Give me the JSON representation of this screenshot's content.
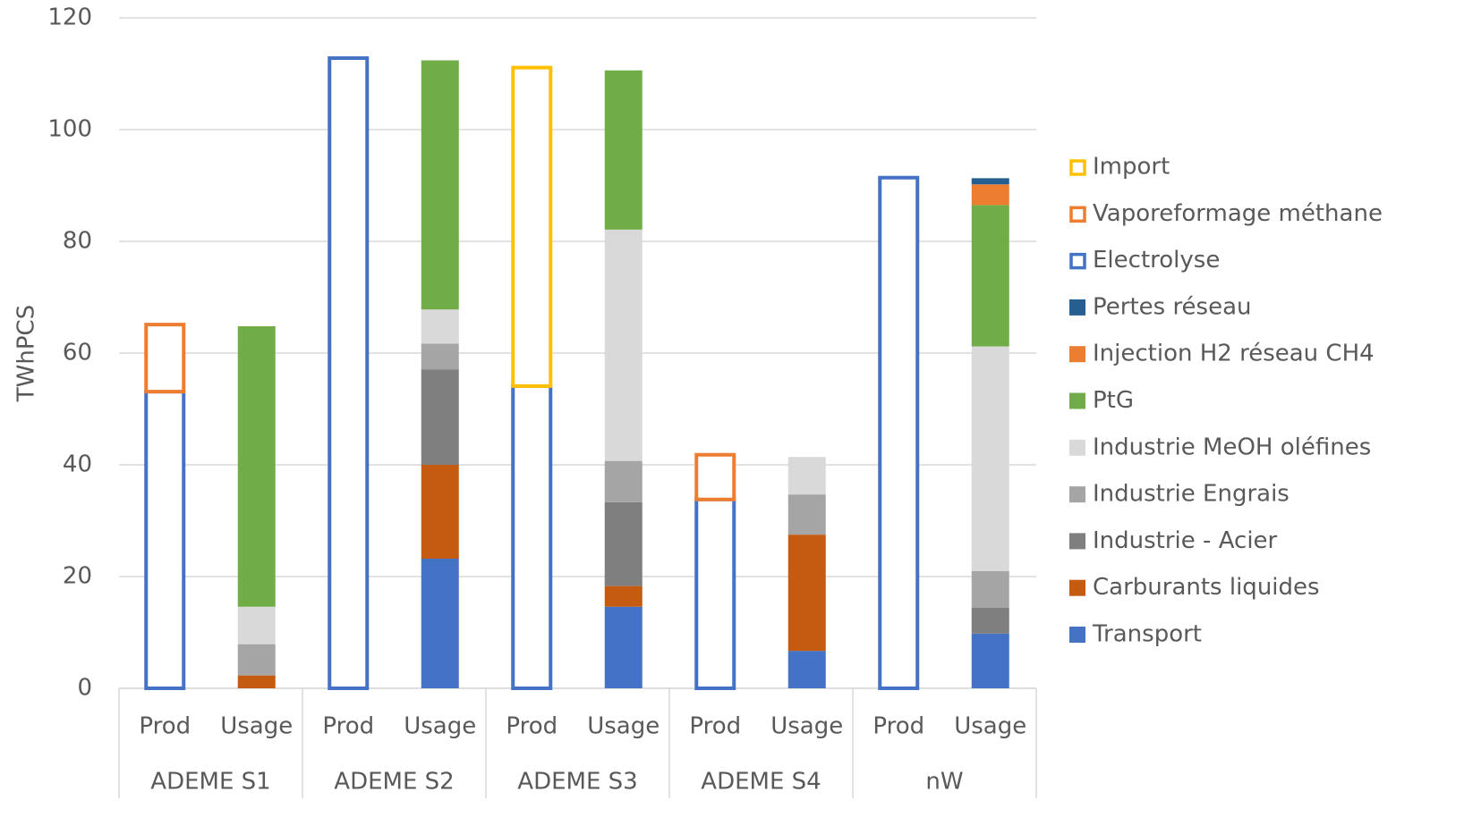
{
  "chart_data": {
    "type": "stacked_bar",
    "y_label": "TWhPCS",
    "categories": [
      "Prod",
      "Usage",
      "Prod",
      "Usage",
      "Prod",
      "Usage",
      "Prod",
      "Usage",
      "Prod",
      "Usage"
    ],
    "groups": [
      "ADEME S1",
      "ADEME S2",
      "ADEME S3",
      "ADEME S4",
      "nW"
    ],
    "ylim": [
      0,
      120
    ],
    "yticks": [
      0,
      20,
      40,
      60,
      80,
      100,
      120
    ],
    "grid": true,
    "legend": "right",
    "series": [
      {
        "name": "Transport",
        "color": "#4472c4",
        "values": [
          null,
          null,
          null,
          23.2,
          null,
          14.6,
          null,
          6.7,
          null,
          9.8
        ]
      },
      {
        "name": "Carburants liquides",
        "color": "#c55a11",
        "values": [
          null,
          2.3,
          null,
          16.8,
          null,
          3.7,
          null,
          20.8,
          null,
          null
        ]
      },
      {
        "name": "Industrie - Acier",
        "color": "#7f7f7f",
        "values": [
          null,
          null,
          null,
          17.1,
          null,
          15.0,
          null,
          null,
          null,
          4.6
        ]
      },
      {
        "name": "Industrie Engrais",
        "color": "#a5a5a5",
        "values": [
          null,
          5.6,
          null,
          4.6,
          null,
          7.4,
          null,
          7.2,
          null,
          6.6
        ]
      },
      {
        "name": "Industrie MeOH oléfines",
        "color": "#d9d9d9",
        "values": [
          null,
          6.7,
          null,
          6.1,
          null,
          41.4,
          null,
          6.7,
          null,
          40.2
        ]
      },
      {
        "name": "PtG",
        "color": "#70ad47",
        "values": [
          null,
          50.2,
          null,
          44.6,
          null,
          28.5,
          null,
          null,
          null,
          25.3
        ]
      },
      {
        "name": "Injection H2 réseau CH4",
        "color": "#ed7d31",
        "values": [
          null,
          null,
          null,
          null,
          null,
          null,
          null,
          null,
          null,
          3.7
        ]
      },
      {
        "name": "Pertes réseau",
        "color": "#255e91",
        "values": [
          null,
          null,
          null,
          null,
          null,
          null,
          null,
          null,
          null,
          1.1
        ]
      },
      {
        "name": "Electrolyse",
        "color": "#4472c4",
        "outline": true,
        "values": [
          53.1,
          null,
          112.8,
          null,
          54.1,
          null,
          33.8,
          null,
          91.4,
          null
        ]
      },
      {
        "name": "Vaporeformage méthane",
        "color": "#ed7d31",
        "outline": true,
        "values": [
          12.0,
          null,
          null,
          null,
          null,
          null,
          8.0,
          null,
          null,
          null
        ]
      },
      {
        "name": "Import",
        "color": "#ffc000",
        "outline": true,
        "values": [
          null,
          null,
          null,
          null,
          57.0,
          null,
          null,
          null,
          null,
          null
        ]
      }
    ]
  }
}
